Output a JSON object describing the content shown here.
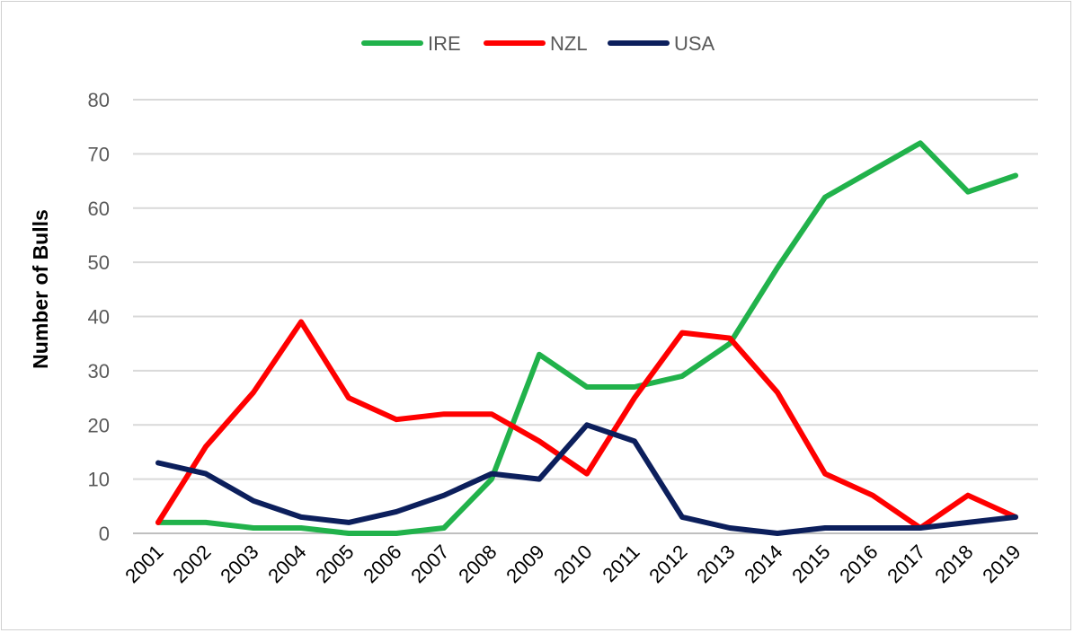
{
  "chart_data": {
    "type": "line",
    "title": "",
    "xlabel": "",
    "ylabel": "Number of Bulls",
    "ylim": [
      0,
      80
    ],
    "yticks": [
      0,
      10,
      20,
      30,
      40,
      50,
      60,
      70,
      80
    ],
    "grid": true,
    "legend_position": "top",
    "categories": [
      "2001",
      "2002",
      "2003",
      "2004",
      "2005",
      "2006",
      "2007",
      "2008",
      "2009",
      "2010",
      "2011",
      "2012",
      "2013",
      "2014",
      "2015",
      "2016",
      "2017",
      "2018",
      "2019"
    ],
    "series": [
      {
        "name": "IRE",
        "color": "#21b24b",
        "values": [
          2,
          2,
          1,
          1,
          0,
          0,
          1,
          10,
          33,
          27,
          27,
          29,
          35,
          49,
          62,
          67,
          72,
          63,
          66
        ]
      },
      {
        "name": "NZL",
        "color": "#ff0000",
        "values": [
          2,
          16,
          26,
          39,
          25,
          21,
          22,
          22,
          17,
          11,
          25,
          37,
          36,
          26,
          11,
          7,
          1,
          7,
          3
        ]
      },
      {
        "name": "USA",
        "color": "#0c1f5c",
        "values": [
          13,
          11,
          6,
          3,
          2,
          4,
          7,
          11,
          10,
          20,
          17,
          3,
          1,
          0,
          1,
          1,
          1,
          2,
          3
        ]
      }
    ]
  }
}
